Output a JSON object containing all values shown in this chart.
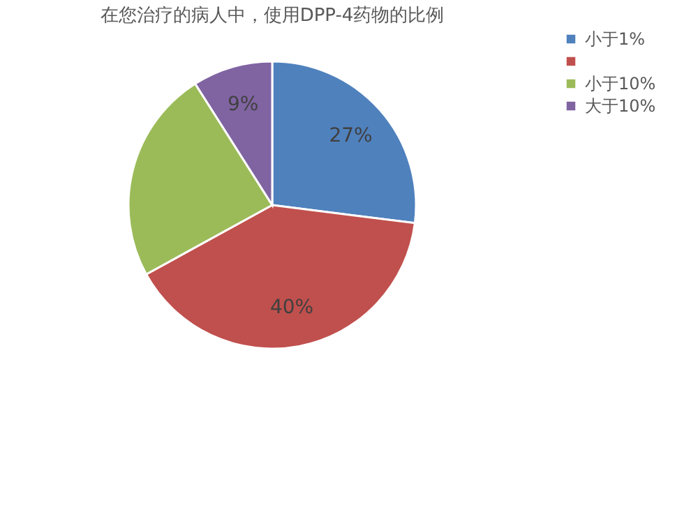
{
  "chart_data": {
    "type": "pie",
    "title": "在您治疗的病人中，使用DPP-4药物的比例",
    "categories": [
      "小于1%",
      null,
      "小于10%",
      "大于10%"
    ],
    "values": [
      27,
      40,
      24,
      9
    ],
    "colors": [
      "#4f81bd",
      "#c0504d",
      "#9bbb59",
      "#8064a2"
    ],
    "value_labels": [
      "27%",
      "40%",
      null,
      "9%"
    ],
    "legend": "right"
  }
}
